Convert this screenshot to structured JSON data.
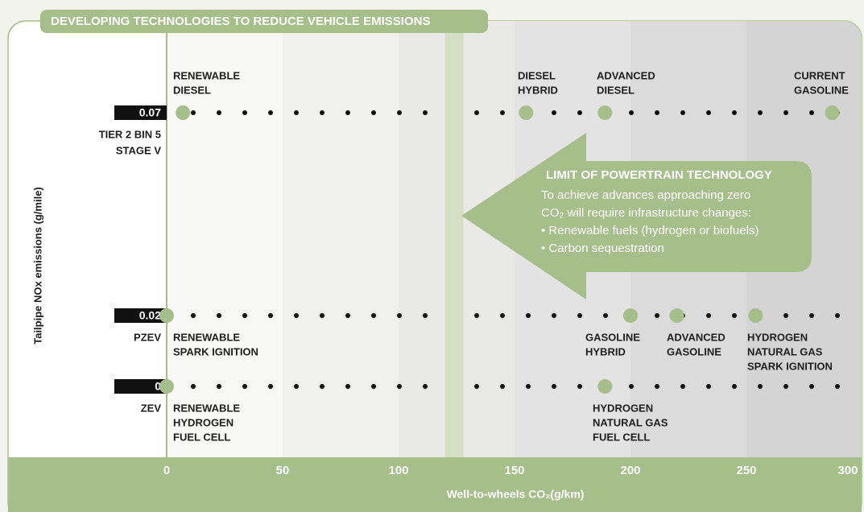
{
  "chart_data": {
    "type": "scatter",
    "title": "DEVELOPING TECHNOLOGIES TO REDUCE VEHICLE EMISSIONS",
    "xlabel": "Well-to-wheels CO₂(g/km)",
    "ylabel": "Tailpipe NOx emissions (g/mile)",
    "xlim": [
      0,
      300
    ],
    "xticks": [
      0,
      50,
      100,
      150,
      200,
      250,
      300
    ],
    "yticks": [
      0.07,
      0.02,
      0
    ],
    "standards": [
      [
        "TIER 2 BIN 5",
        "STAGE V"
      ],
      [
        "PZEV"
      ],
      [
        "ZEV"
      ]
    ],
    "color": "#a6bf8a",
    "limit_band": [
      120,
      128
    ],
    "points": [
      {
        "label": [
          "RENEWABLE",
          "DIESEL"
        ],
        "x": 7,
        "y": 0.07
      },
      {
        "label": [
          "DIESEL",
          "HYBRID"
        ],
        "x": 155,
        "y": 0.07
      },
      {
        "label": [
          "ADVANCED",
          "DIESEL"
        ],
        "x": 189,
        "y": 0.07
      },
      {
        "label": [
          "CURRENT",
          "GASOLINE"
        ],
        "x": 287,
        "y": 0.07
      },
      {
        "label": [
          "RENEWABLE",
          "SPARK IGNITION"
        ],
        "x": 0,
        "y": 0.02
      },
      {
        "label": [
          "GASOLINE",
          "HYBRID"
        ],
        "x": 200,
        "y": 0.02
      },
      {
        "label": [
          "ADVANCED",
          "GASOLINE"
        ],
        "x": 220,
        "y": 0.02
      },
      {
        "label": [
          "HYDROGEN",
          "NATURAL GAS",
          "SPARK IGNITION"
        ],
        "x": 254,
        "y": 0.02
      },
      {
        "label": [
          "RENEWABLE",
          "HYDROGEN",
          "FUEL CELL"
        ],
        "x": 0,
        "y": 0
      },
      {
        "label": [
          "HYDROGEN",
          "NATURAL GAS",
          "FUEL CELL"
        ],
        "x": 189,
        "y": 0
      }
    ],
    "annotation": {
      "title": "LIMIT OF POWERTRAIN TECHNOLOGY",
      "lines": [
        "To achieve advances approaching zero",
        "CO₂ will require infrastructure changes:",
        "• Renewable fuels (hydrogen or biofuels)",
        "• Carbon sequestration"
      ]
    }
  }
}
